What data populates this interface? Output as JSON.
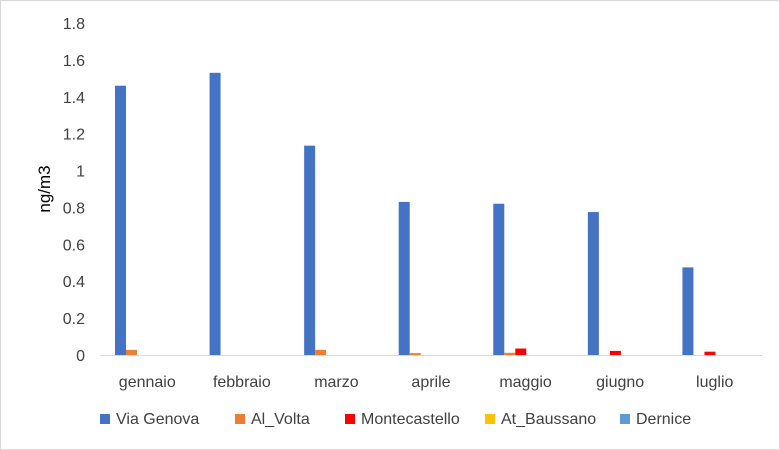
{
  "chart_data": {
    "type": "bar",
    "ylabel": "ng/m3",
    "xlabel": "",
    "ylim": [
      0,
      1.8
    ],
    "y_ticks": [
      0,
      0.2,
      0.4,
      0.6,
      0.8,
      1,
      1.2,
      1.4,
      1.6,
      1.8
    ],
    "y_tick_labels": [
      "0",
      "0.2",
      "0.4",
      "0.6",
      "0.8",
      "1",
      "1.2",
      "1.4",
      "1.6",
      "1.8"
    ],
    "grid": false,
    "legend_position": "bottom",
    "categories": [
      "gennaio",
      "febbraio",
      "marzo",
      "aprile",
      "maggio",
      "giugno",
      "luglio"
    ],
    "series": [
      {
        "name": "Via Genova",
        "color": "#4472c4",
        "values": [
          1.46,
          1.53,
          1.135,
          0.83,
          0.82,
          0.775,
          0.475
        ]
      },
      {
        "name": "Al_Volta",
        "color": "#ed7d31",
        "values": [
          0.028,
          0,
          0.028,
          0.01,
          0.012,
          0,
          0
        ]
      },
      {
        "name": "Montecastello",
        "color": "#ff0000",
        "values": [
          0,
          0,
          0,
          0,
          0.035,
          0.022,
          0.018
        ]
      },
      {
        "name": "At_Baussano",
        "color": "#ffc000",
        "values": [
          0,
          0,
          0,
          0,
          0,
          0,
          0
        ]
      },
      {
        "name": "Dernice",
        "color": "#5b9bd5",
        "values": [
          0,
          0,
          0,
          0,
          0,
          0,
          0
        ]
      }
    ]
  }
}
